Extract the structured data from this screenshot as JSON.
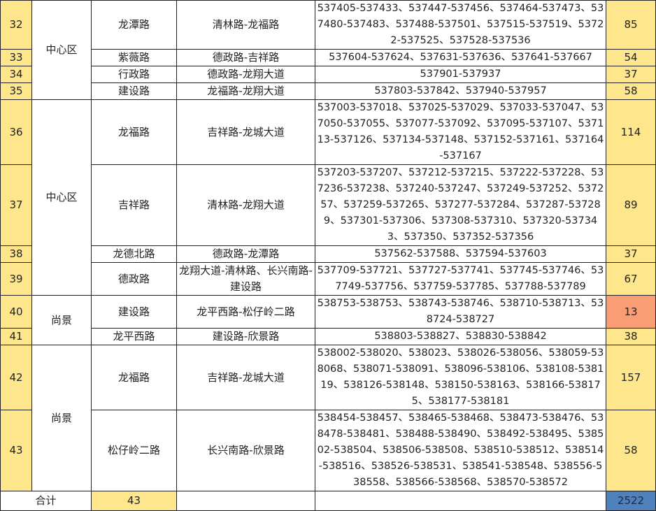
{
  "colors": {
    "yellow": "#fde68c",
    "highlight_low": "#f89d74",
    "total_blue": "#4f81bd"
  },
  "districts": [
    {
      "name": "中心区",
      "rows": 4
    },
    {
      "name": "中心区",
      "rows": 4
    },
    {
      "name": "尚景",
      "rows": 2
    },
    {
      "name": "尚景",
      "rows": 2
    }
  ],
  "rows": [
    {
      "no": "32",
      "road": "龙潭路",
      "section": "清林路-龙福路",
      "codes": "537405-537433、537447-537456、537464-537473、537480-537483、537488-537501、537515-537519、53722-537525、537528-537536",
      "count": "85"
    },
    {
      "no": "33",
      "road": "紫薇路",
      "section": "德政路-吉祥路",
      "codes": "537604-537624、537631-537636、537641-537667",
      "count": "54"
    },
    {
      "no": "34",
      "road": "行政路",
      "section": "德政路-龙翔大道",
      "codes": "537901-537937",
      "count": "37"
    },
    {
      "no": "35",
      "road": "建设路",
      "section": "龙福路-龙翔大道",
      "codes": "537803-537842、537940-537957",
      "count": "58"
    },
    {
      "no": "36",
      "road": "龙福路",
      "section": "吉祥路-龙城大道",
      "codes": "537003-537018、537025-537029、537033-537047、537050-537055、537077-537092、537095-537107、537113-537126、537134-537148、537152-537161、537164-537167",
      "count": "114"
    },
    {
      "no": "37",
      "road": "吉祥路",
      "section": "清林路-龙翔大道",
      "codes": "537203-537207、537212-537215、537222-537228、537236-537238、537240-537247、537249-537252、537257、537259-537265、537277-537284、537287-537289、537301-537306、537308-537310、537320-537343、537350、537352-537356",
      "count": "89"
    },
    {
      "no": "38",
      "road": "龙德北路",
      "section": "德政路-龙潭路",
      "codes": "537562-537588、537594-537603",
      "count": "37"
    },
    {
      "no": "39",
      "road": "德政路",
      "section": "龙翔大道-清林路、长兴南路-建设路",
      "codes": "537709-537721、537727-537741、537745-537746、537749-537756、537759-537785、537788-537789",
      "count": "67"
    },
    {
      "no": "40",
      "road": "建设路",
      "section": "龙平西路-松仔岭二路",
      "codes": "538753-538753、538743-538746、538710-538713、538724-538727",
      "count": "13",
      "low": true
    },
    {
      "no": "41",
      "road": "龙平西路",
      "section": "建设路-欣景路",
      "codes": "538803-538827、538830-538842",
      "count": "38"
    },
    {
      "no": "42",
      "road": "龙福路",
      "section": "吉祥路-龙城大道",
      "codes": "538002-538020、538023、538026-538056、538059-538068、538071-538091、538096-538106、538108-538119、538126-538148、538150-538163、538166-538175、538177-538181",
      "count": "157"
    },
    {
      "no": "43",
      "road": "松仔岭二路",
      "section": "长兴南路-欣景路",
      "codes": "538454-538457、538465-538468、538473-538476、538478-538481、538488-538490、538492-538495、538502-538504、538506-538508、538510-538512、538514-538516、538526-538531、538541-538548、538556-538558、538566-538568、538570-538572",
      "count": "58"
    }
  ],
  "total": {
    "label": "合计",
    "roads": "43",
    "count": "2522"
  }
}
